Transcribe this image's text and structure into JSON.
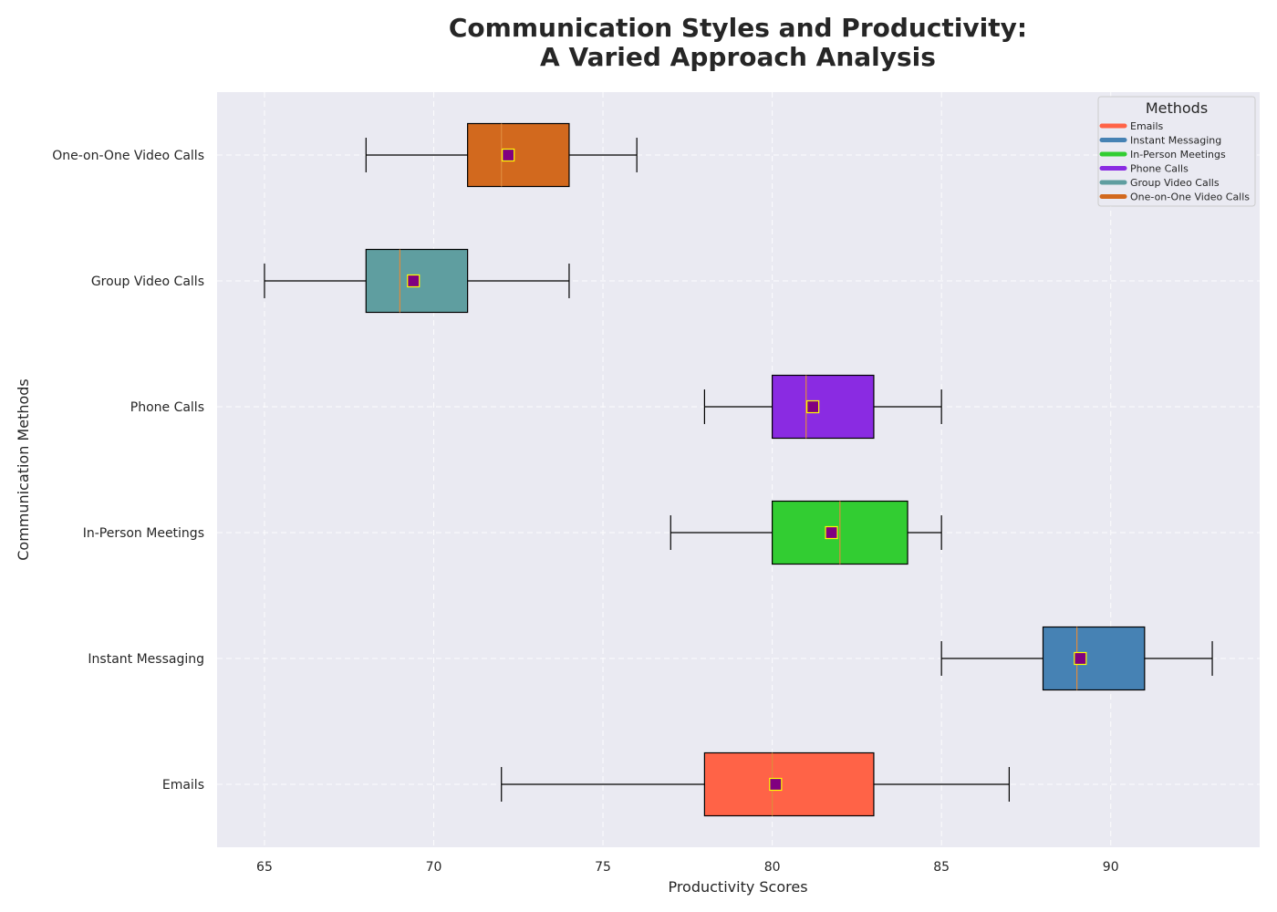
{
  "chart_data": {
    "type": "boxplot",
    "orientation": "horizontal",
    "title_lines": [
      "Communication Styles and Productivity:",
      "A Varied Approach Analysis"
    ],
    "xlabel": "Productivity Scores",
    "ylabel": "Communication Methods",
    "xlim": [
      63.6,
      94.4
    ],
    "xticks": [
      65,
      70,
      75,
      80,
      85,
      90
    ],
    "grid": true,
    "legend": {
      "title": "Methods",
      "placement": "top-right"
    },
    "categories": [
      "Emails",
      "Instant Messaging",
      "In-Person Meetings",
      "Phone Calls",
      "Group Video Calls",
      "One-on-One Video Calls"
    ],
    "series": [
      {
        "name": "Emails",
        "whisker_low": 72,
        "q1": 78,
        "median": 80,
        "q3": 83,
        "whisker_high": 87,
        "mean": 80.1,
        "color": "#FF6347"
      },
      {
        "name": "Instant Messaging",
        "whisker_low": 85,
        "q1": 88,
        "median": 89,
        "q3": 91,
        "whisker_high": 93,
        "mean": 89.1,
        "color": "#4682B4"
      },
      {
        "name": "In-Person Meetings",
        "whisker_low": 77,
        "q1": 80,
        "median": 82,
        "q3": 84,
        "whisker_high": 85,
        "mean": 81.75,
        "color": "#32CD32"
      },
      {
        "name": "Phone Calls",
        "whisker_low": 78,
        "q1": 80,
        "median": 81,
        "q3": 83,
        "whisker_high": 85,
        "mean": 81.2,
        "color": "#8A2BE2"
      },
      {
        "name": "Group Video Calls",
        "whisker_low": 65,
        "q1": 68,
        "median": 69,
        "q3": 71,
        "whisker_high": 74,
        "mean": 69.4,
        "color": "#5F9EA0"
      },
      {
        "name": "One-on-One Video Calls",
        "whisker_low": 68,
        "q1": 71,
        "median": 72,
        "q3": 74,
        "whisker_high": 76,
        "mean": 72.2,
        "color": "#D2691E"
      }
    ],
    "median_line_color": "#E08A3C",
    "mean_marker": {
      "fill": "#800080",
      "edge": "#FFFF00",
      "shape": "square"
    },
    "plot_background": "#EAEAF2",
    "grid_color": "#FFFFFF"
  }
}
